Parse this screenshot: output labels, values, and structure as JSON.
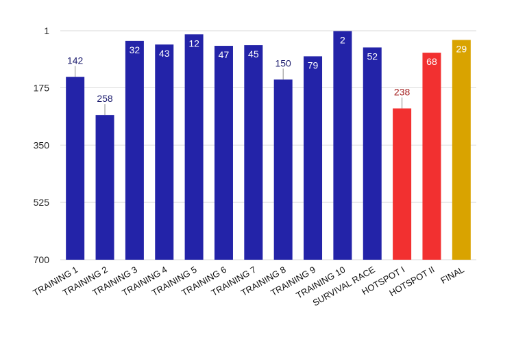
{
  "chart_data": {
    "type": "bar",
    "title": "",
    "xlabel": "",
    "ylabel": "",
    "y_axis": {
      "reversed": true,
      "ylim": [
        1,
        700
      ],
      "ticks": [
        1,
        175,
        350,
        525,
        700
      ]
    },
    "grid": true,
    "legend": "none",
    "categories": [
      "TRAINING 1",
      "TRAINING 2",
      "TRAINING 3",
      "TRAINING 4",
      "TRAINING 5",
      "TRAINING 6",
      "TRAINING 7",
      "TRAINING 8",
      "TRAINING 9",
      "TRAINING 10",
      "SURVIVAL RACE",
      "HOTSPOT I",
      "HOTSPOT II",
      "FINAL"
    ],
    "values": [
      142,
      258,
      32,
      43,
      12,
      47,
      45,
      150,
      79,
      2,
      52,
      238,
      68,
      29
    ],
    "bar_colors": [
      "#2323a8",
      "#2323a8",
      "#2323a8",
      "#2323a8",
      "#2323a8",
      "#2323a8",
      "#2323a8",
      "#2323a8",
      "#2323a8",
      "#2323a8",
      "#2323a8",
      "#f23030",
      "#f23030",
      "#d9a300"
    ]
  },
  "colors": {
    "grid": "#d9d9d9",
    "label_inside": "#ffffff",
    "label_outside_blue": "#1c1c6e",
    "label_outside_red": "#a52020",
    "leader_line": "#888888"
  }
}
